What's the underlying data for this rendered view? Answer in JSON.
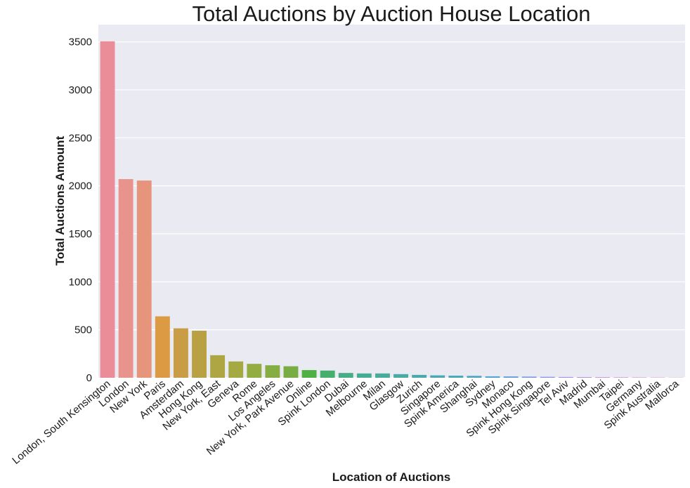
{
  "chart_data": {
    "type": "bar",
    "title": "Total Auctions by Auction House Location",
    "xlabel": "Location of Auctions",
    "ylabel": "Total Auctions Amount",
    "ylim": [
      0,
      3680
    ],
    "yticks": [
      0,
      500,
      1000,
      1500,
      2000,
      2500,
      3000,
      3500
    ],
    "grid": true,
    "legend": "none",
    "background_color": "#eaeaf2",
    "categories": [
      "London, South Kensington",
      "London",
      "New York",
      "Paris",
      "Amsterdam",
      "Hong Kong",
      "New York, East",
      "Geneva",
      "Rome",
      "Los Angeles",
      "New York, Park Avenue",
      "Online",
      "Spink London",
      "Dubai",
      "Melbourne",
      "Milan",
      "Glasgow",
      "Zurich",
      "Singapore",
      "Spink America",
      "Shanghai",
      "Sydney",
      "Monaco",
      "Spink Hong Kong",
      "Spink Singapore",
      "Tel Aviv",
      "Madrid",
      "Mumbai",
      "Taipei",
      "Germany",
      "Spink Australia",
      "Mallorca"
    ],
    "values": [
      3505,
      2070,
      2055,
      640,
      515,
      490,
      235,
      170,
      145,
      130,
      120,
      80,
      75,
      50,
      45,
      45,
      38,
      30,
      25,
      22,
      20,
      15,
      14,
      12,
      10,
      8,
      7,
      6,
      5,
      4,
      3,
      2
    ],
    "colors": [
      "#ea8d98",
      "#e8948c",
      "#e6957c",
      "#dc9a42",
      "#c89d45",
      "#b8a043",
      "#aea543",
      "#a4aa41",
      "#94ad41",
      "#86ad42",
      "#78ad43",
      "#4fb044",
      "#44b06b",
      "#45ae84",
      "#47ad92",
      "#48ac9c",
      "#48aba4",
      "#49aaad",
      "#4aa9b5",
      "#4ba9bc",
      "#4ca8c5",
      "#52a6d5",
      "#65a0dc",
      "#7a9ae6",
      "#8f95ea",
      "#a690ea",
      "#bd88e6",
      "#cd86df",
      "#da84d5",
      "#e282c8",
      "#e686bb",
      "#e78aaf"
    ]
  }
}
